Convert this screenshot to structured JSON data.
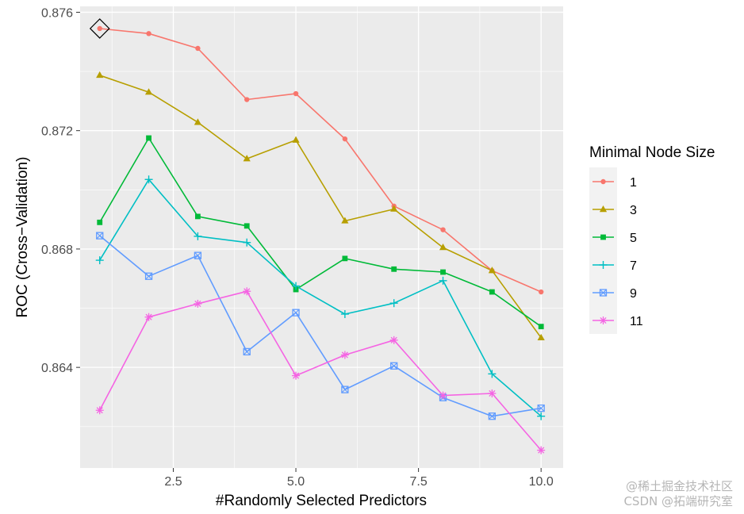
{
  "chart_data": {
    "type": "line",
    "xlabel": "#Randomly Selected Predictors",
    "ylabel": "ROC (Cross−Validation)",
    "xlim": [
      0.6,
      10.45
    ],
    "ylim": [
      0.8606,
      0.8762
    ],
    "x_ticks": [
      2.5,
      5.0,
      7.5,
      10.0
    ],
    "x_tick_labels": [
      "2.5",
      "5.0",
      "7.5",
      "10.0"
    ],
    "y_ticks": [
      0.864,
      0.868,
      0.872,
      0.876
    ],
    "y_tick_labels": [
      "0.864",
      "0.868",
      "0.872",
      "0.876"
    ],
    "grid": true,
    "legend": {
      "title": "Minimal Node Size",
      "position": "right"
    },
    "x": [
      1,
      2,
      3,
      4,
      5,
      6,
      7,
      8,
      9,
      10
    ],
    "series": [
      {
        "name": "1",
        "color": "#F8766D",
        "marker": "circle",
        "values": [
          0.87545,
          0.87528,
          0.87478,
          0.87305,
          0.87325,
          0.87172,
          0.86945,
          0.86865,
          0.86727,
          0.86655
        ]
      },
      {
        "name": "3",
        "color": "#B79F00",
        "marker": "triangle",
        "values": [
          0.87387,
          0.8733,
          0.87228,
          0.87105,
          0.87168,
          0.86895,
          0.86935,
          0.86805,
          0.86727,
          0.865
        ]
      },
      {
        "name": "5",
        "color": "#00BA38",
        "marker": "square",
        "values": [
          0.8689,
          0.87175,
          0.8691,
          0.86878,
          0.86663,
          0.86768,
          0.86732,
          0.86722,
          0.86655,
          0.86538
        ]
      },
      {
        "name": "7",
        "color": "#00BFC4",
        "marker": "plus",
        "values": [
          0.86762,
          0.87035,
          0.86843,
          0.86822,
          0.86675,
          0.8658,
          0.86617,
          0.86693,
          0.86378,
          0.86235
        ]
      },
      {
        "name": "9",
        "color": "#619CFF",
        "marker": "boxx",
        "values": [
          0.86845,
          0.86708,
          0.86778,
          0.86453,
          0.86585,
          0.86325,
          0.86405,
          0.86298,
          0.86235,
          0.86262
        ]
      },
      {
        "name": "11",
        "color": "#F564E3",
        "marker": "asterisk",
        "values": [
          0.86255,
          0.8657,
          0.86615,
          0.86657,
          0.86372,
          0.86442,
          0.86492,
          0.86305,
          0.86312,
          0.8612
        ]
      }
    ],
    "highlight": {
      "x": 1,
      "y": 0.87545,
      "marker": "diamond"
    }
  },
  "watermark": {
    "line1": "@稀土掘金技术社区",
    "line2": "CSDN @拓端研究室"
  }
}
